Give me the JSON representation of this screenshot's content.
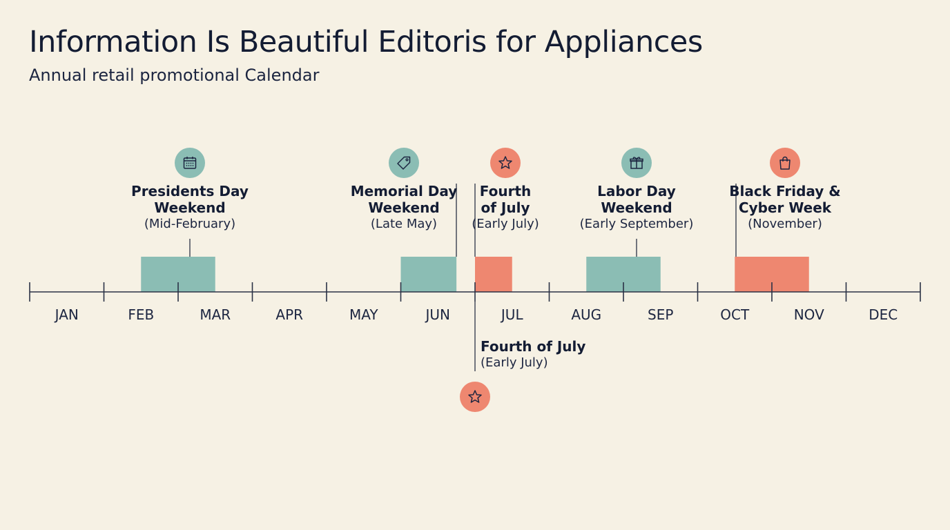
{
  "header": {
    "title": "Information Is Beautiful Editoris for Appliances",
    "subtitle": "Annual retail promotional Calendar"
  },
  "colors": {
    "teal": "#8bbdb4",
    "coral": "#ee8770",
    "axis": "#2a3145",
    "background": "#f6f1e4"
  },
  "months": [
    "JAN",
    "FEB",
    "MAR",
    "APR",
    "MAY",
    "JUN",
    "JUL",
    "AUG",
    "SEP",
    "OCT",
    "NOV",
    "DEC"
  ],
  "events": [
    {
      "name_lines": [
        "Presidents Day",
        "Weekend"
      ],
      "when": "(Mid-February)",
      "icon": "calendar-icon",
      "color": "teal",
      "start_month": 1.5,
      "end_month": 2.5
    },
    {
      "name_lines": [
        "Memorial Day",
        "Weekend"
      ],
      "when": "(Late May)",
      "icon": "tag-icon",
      "color": "teal",
      "start_month": 5.0,
      "end_month": 5.75
    },
    {
      "name_lines": [
        "Fourth",
        "of July"
      ],
      "when": "(Early July)",
      "icon": "star-icon",
      "color": "coral",
      "start_month": 6.0,
      "end_month": 6.5
    },
    {
      "name_lines": [
        "Labor Day",
        "Weekend"
      ],
      "when": "(Early September)",
      "icon": "gift-icon",
      "color": "teal",
      "start_month": 7.5,
      "end_month": 8.5
    },
    {
      "name_lines": [
        "Black Friday &",
        "Cyber Week"
      ],
      "when": "(November)",
      "icon": "shopping-bag-icon",
      "color": "coral",
      "start_month": 9.5,
      "end_month": 10.5
    }
  ],
  "callout_below": {
    "name": "Fourth of July",
    "when": "(Early July)",
    "icon": "star-icon",
    "color": "coral",
    "month": 6.0
  }
}
